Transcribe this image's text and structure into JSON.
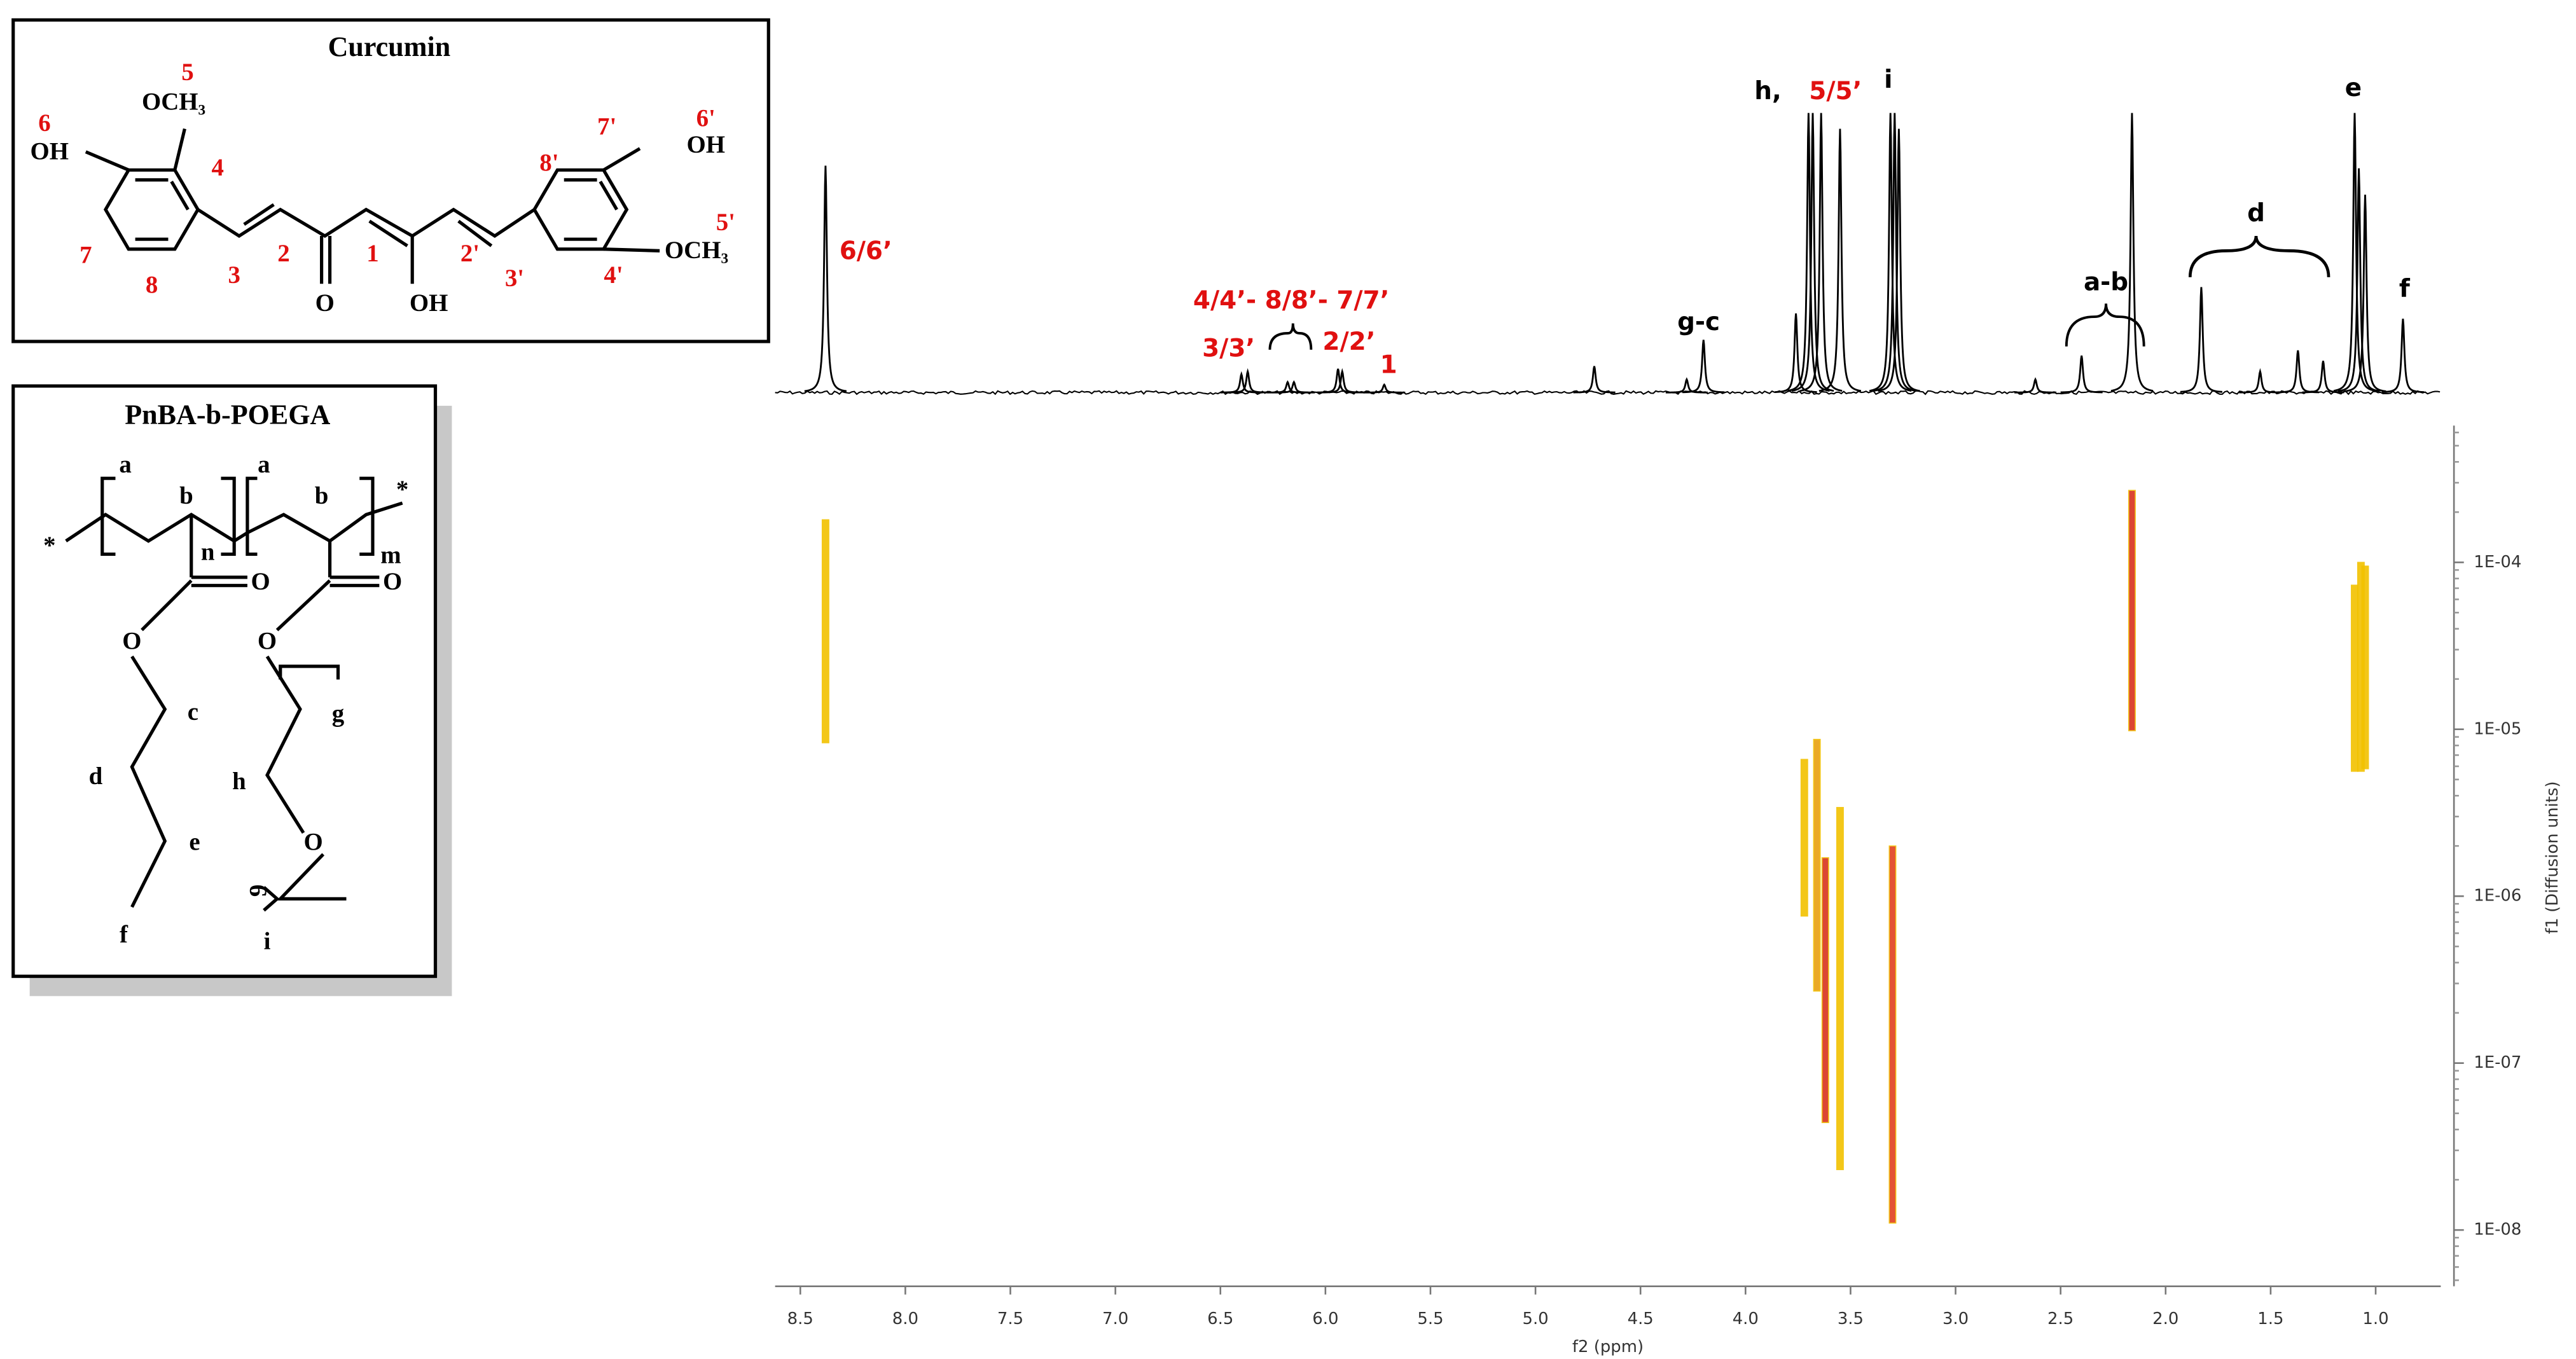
{
  "chart_data": {
    "type": "dosy",
    "xlabel": "f2 (ppm)",
    "ylabel": "f1 (Diffusion units)",
    "xlim": [
      8.62,
      0.69
    ],
    "xticks": [
      8.5,
      {
        "value": 8,
        "label": "8.0"
      },
      7.5,
      {
        "value": 7,
        "label": "7.0"
      },
      6.5,
      {
        "value": 6,
        "label": "6.0"
      },
      5.5,
      {
        "value": 5,
        "label": "5.0"
      },
      4.5,
      {
        "value": 4,
        "label": "4.0"
      },
      3.5,
      {
        "value": 3,
        "label": "3.0"
      },
      2.5,
      {
        "value": 2,
        "label": "2.0"
      },
      1.5,
      {
        "value": 1,
        "label": "1.0"
      }
    ],
    "ylim": [
      4.6e-09,
      0.00066
    ],
    "log_scale": true,
    "yticks": [
      {
        "value": 0.0001,
        "label": "1E-04"
      },
      {
        "value": 1e-05,
        "label": "1E-05"
      },
      {
        "value": 1e-06,
        "label": "1E-06"
      },
      {
        "value": 1e-07,
        "label": "1E-07"
      },
      {
        "value": 1e-08,
        "label": "1E-08"
      }
    ],
    "spectrum": {
      "color": "#000000",
      "x": [
        8.38,
        6.4,
        6.37,
        6.18,
        6.15,
        5.94,
        5.92,
        5.72,
        4.72,
        4.28,
        4.2,
        3.76,
        3.7,
        3.68,
        3.64,
        3.55,
        3.31,
        3.29,
        3.27,
        2.62,
        2.4,
        2.16,
        1.83,
        1.55,
        1.37,
        1.25,
        1.1,
        1.08,
        1.05,
        0.87
      ],
      "values": [
        86,
        7,
        8,
        4,
        4,
        9,
        8,
        3,
        10,
        5,
        20,
        30,
        106,
        106,
        106,
        100,
        106,
        106,
        100,
        5,
        14,
        106,
        40,
        8,
        16,
        12,
        106,
        85,
        75,
        28
      ]
    },
    "cross_peaks": {
      "x": [
        8.38,
        2.16,
        1.1,
        1.07,
        1.05,
        3.72,
        3.66,
        3.62,
        3.55,
        3.3
      ],
      "low": [
        8.3e-06,
        9.8e-06,
        5.6e-06,
        5.6e-06,
        5.8e-06,
        7.6e-07,
        2.7e-07,
        4.4e-08,
        2.3e-08,
        1.1e-08
      ],
      "high": [
        0.00018,
        0.00027,
        7.3e-05,
        0.0001,
        9.5e-05,
        6.6e-06,
        8.7e-06,
        1.7e-06,
        3.4e-06,
        2e-06
      ],
      "colors": [
        "#f2c200",
        "#d8321e",
        "#f2c200",
        "#f2c200",
        "#f2c200",
        "#f2c200",
        "#e8a010",
        "#d8321e",
        "#f2c200",
        "#e04020"
      ]
    },
    "annotations": [
      "6/6’",
      "4/4’- 8/8’- 7/7’",
      "3/3’",
      "2/2’",
      "1",
      "g-c",
      "h,",
      "5/5’",
      "i",
      "a-b",
      "d",
      "e",
      "f"
    ]
  },
  "structures": [
    {
      "title": "Curcumin",
      "labels": [
        "5",
        "OCH₃",
        "6",
        "OH",
        "4",
        "7",
        "8",
        "3",
        "2",
        "O",
        "1",
        "OH",
        "2'",
        "3'",
        "4'",
        "8'",
        "7'",
        "6'",
        "OH",
        "5'",
        "OCH₃"
      ]
    },
    {
      "title": "PnBA-b-POEGA",
      "labels": [
        "a",
        "b",
        "n",
        "a",
        "b",
        "m",
        "*",
        "*",
        "O",
        "O",
        "O",
        "O",
        "c",
        "g",
        "d",
        "h",
        "e",
        "O",
        "9",
        "f",
        "i"
      ]
    }
  ]
}
